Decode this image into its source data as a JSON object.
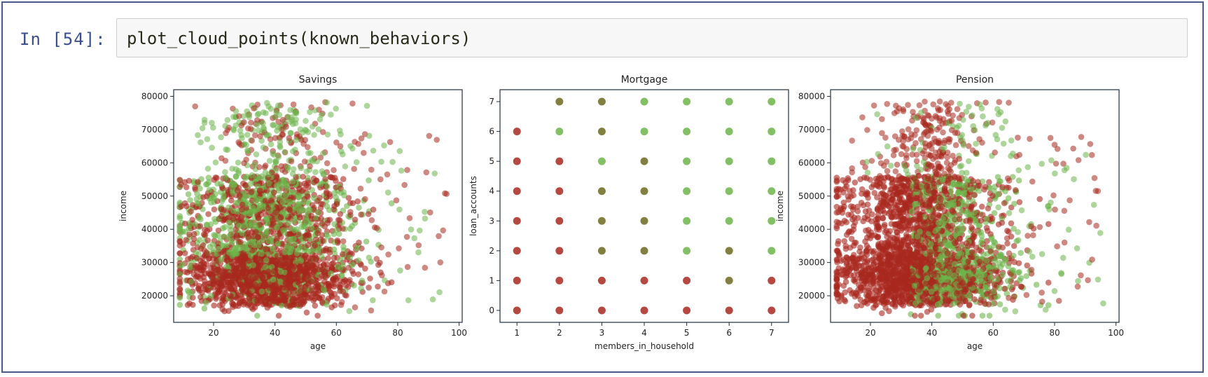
{
  "cell": {
    "prompt": "In [54]:",
    "code": "plot_cloud_points(known_behaviors)"
  },
  "colors": {
    "red": "#a8281e",
    "green": "#6cb44a",
    "olive": "#6b6a1e",
    "axis": "#1f2f3f"
  },
  "chart_data": [
    {
      "type": "scatter",
      "title": "Savings",
      "xlabel": "age",
      "ylabel": "income",
      "xlim": [
        7,
        101
      ],
      "ylim": [
        12000,
        82000
      ],
      "xticks": [
        20,
        40,
        60,
        80,
        100
      ],
      "yticks": [
        20000,
        30000,
        40000,
        50000,
        60000,
        70000,
        80000
      ],
      "grid": false
    },
    {
      "type": "scatter",
      "title": "Mortgage",
      "xlabel": "members_in_household",
      "ylabel": "loan_accounts",
      "xlim": [
        0.6,
        7.4
      ],
      "ylim": [
        -0.4,
        7.4
      ],
      "xticks": [
        1,
        2,
        3,
        4,
        5,
        6,
        7
      ],
      "yticks": [
        0,
        1,
        2,
        3,
        4,
        5,
        6,
        7
      ],
      "grid": false,
      "points": [
        {
          "x": 1,
          "y": 0,
          "c": "red"
        },
        {
          "x": 1,
          "y": 1,
          "c": "red"
        },
        {
          "x": 1,
          "y": 2,
          "c": "red"
        },
        {
          "x": 1,
          "y": 3,
          "c": "red"
        },
        {
          "x": 1,
          "y": 4,
          "c": "red"
        },
        {
          "x": 1,
          "y": 5,
          "c": "red"
        },
        {
          "x": 1,
          "y": 6,
          "c": "red"
        },
        {
          "x": 2,
          "y": 0,
          "c": "red"
        },
        {
          "x": 2,
          "y": 1,
          "c": "red"
        },
        {
          "x": 2,
          "y": 2,
          "c": "red"
        },
        {
          "x": 2,
          "y": 3,
          "c": "red"
        },
        {
          "x": 2,
          "y": 4,
          "c": "red"
        },
        {
          "x": 2,
          "y": 5,
          "c": "red"
        },
        {
          "x": 2,
          "y": 6,
          "c": "green"
        },
        {
          "x": 2,
          "y": 7,
          "c": "olive"
        },
        {
          "x": 3,
          "y": 0,
          "c": "red"
        },
        {
          "x": 3,
          "y": 1,
          "c": "red"
        },
        {
          "x": 3,
          "y": 2,
          "c": "olive"
        },
        {
          "x": 3,
          "y": 3,
          "c": "olive"
        },
        {
          "x": 3,
          "y": 4,
          "c": "olive"
        },
        {
          "x": 3,
          "y": 5,
          "c": "green"
        },
        {
          "x": 3,
          "y": 6,
          "c": "olive"
        },
        {
          "x": 3,
          "y": 7,
          "c": "olive"
        },
        {
          "x": 4,
          "y": 0,
          "c": "red"
        },
        {
          "x": 4,
          "y": 1,
          "c": "red"
        },
        {
          "x": 4,
          "y": 2,
          "c": "olive"
        },
        {
          "x": 4,
          "y": 3,
          "c": "olive"
        },
        {
          "x": 4,
          "y": 4,
          "c": "olive"
        },
        {
          "x": 4,
          "y": 5,
          "c": "olive"
        },
        {
          "x": 4,
          "y": 6,
          "c": "green"
        },
        {
          "x": 4,
          "y": 7,
          "c": "green"
        },
        {
          "x": 5,
          "y": 0,
          "c": "red"
        },
        {
          "x": 5,
          "y": 1,
          "c": "red"
        },
        {
          "x": 5,
          "y": 2,
          "c": "green"
        },
        {
          "x": 5,
          "y": 3,
          "c": "green"
        },
        {
          "x": 5,
          "y": 4,
          "c": "green"
        },
        {
          "x": 5,
          "y": 5,
          "c": "green"
        },
        {
          "x": 5,
          "y": 6,
          "c": "green"
        },
        {
          "x": 5,
          "y": 7,
          "c": "green"
        },
        {
          "x": 6,
          "y": 0,
          "c": "red"
        },
        {
          "x": 6,
          "y": 1,
          "c": "olive"
        },
        {
          "x": 6,
          "y": 2,
          "c": "olive"
        },
        {
          "x": 6,
          "y": 3,
          "c": "green"
        },
        {
          "x": 6,
          "y": 4,
          "c": "green"
        },
        {
          "x": 6,
          "y": 5,
          "c": "green"
        },
        {
          "x": 6,
          "y": 6,
          "c": "green"
        },
        {
          "x": 6,
          "y": 7,
          "c": "green"
        },
        {
          "x": 7,
          "y": 0,
          "c": "red"
        },
        {
          "x": 7,
          "y": 1,
          "c": "red"
        },
        {
          "x": 7,
          "y": 2,
          "c": "green"
        },
        {
          "x": 7,
          "y": 3,
          "c": "green"
        },
        {
          "x": 7,
          "y": 4,
          "c": "green"
        },
        {
          "x": 7,
          "y": 5,
          "c": "green"
        },
        {
          "x": 7,
          "y": 6,
          "c": "green"
        },
        {
          "x": 7,
          "y": 7,
          "c": "green"
        }
      ]
    },
    {
      "type": "scatter",
      "title": "Pension",
      "xlabel": "age",
      "ylabel": "income",
      "xlim": [
        7,
        101
      ],
      "ylim": [
        12000,
        82000
      ],
      "xticks": [
        20,
        40,
        60,
        80,
        100
      ],
      "yticks": [
        20000,
        30000,
        40000,
        50000,
        60000,
        70000,
        80000
      ],
      "grid": false
    }
  ]
}
